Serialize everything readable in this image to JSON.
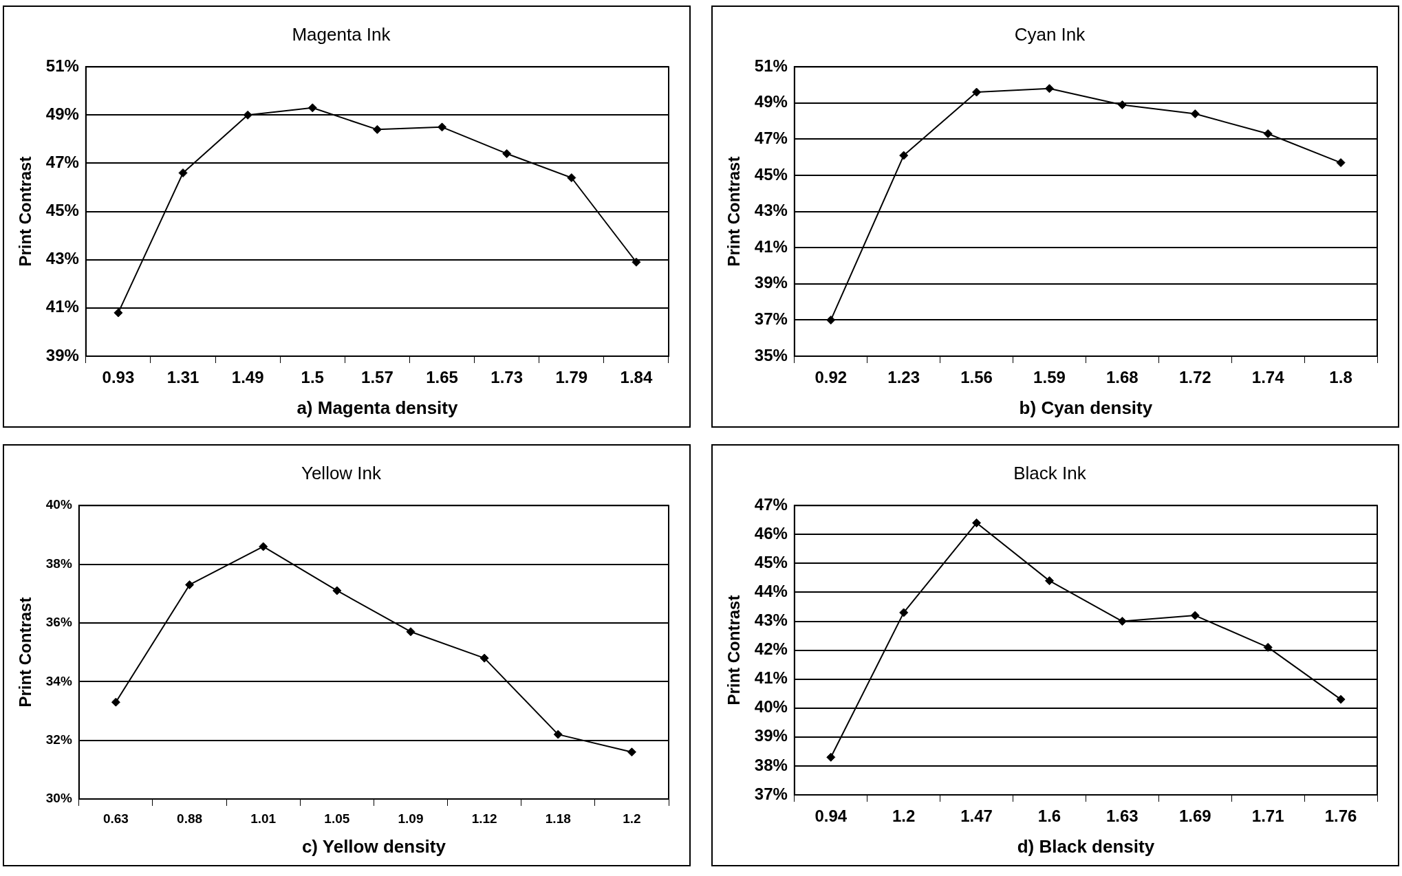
{
  "chart_data": [
    {
      "type": "line",
      "title": "Magenta Ink",
      "xlabel": "a) Magenta density",
      "ylabel": "Print Contrast",
      "categories": [
        "0.93",
        "1.31",
        "1.49",
        "1.5",
        "1.57",
        "1.65",
        "1.73",
        "1.79",
        "1.84"
      ],
      "values": [
        40.8,
        46.6,
        49.0,
        49.3,
        48.4,
        48.5,
        47.4,
        46.4,
        42.9
      ],
      "color": "#000000",
      "ylim": [
        39,
        51
      ],
      "yticks": [
        {
          "value": 39,
          "label": "39%"
        },
        {
          "value": 41,
          "label": "41%"
        },
        {
          "value": 43,
          "label": "43%"
        },
        {
          "value": 45,
          "label": "45%"
        },
        {
          "value": 47,
          "label": "47%"
        },
        {
          "value": 49,
          "label": "49%"
        },
        {
          "value": 51,
          "label": "51%"
        }
      ],
      "grid": "y",
      "legend": false,
      "marker": "diamond",
      "line_style": "solid"
    },
    {
      "type": "line",
      "title": "Cyan Ink",
      "xlabel": "b) Cyan density",
      "ylabel": "Print Contrast",
      "categories": [
        "0.92",
        "1.23",
        "1.56",
        "1.59",
        "1.68",
        "1.72",
        "1.74",
        "1.8"
      ],
      "values": [
        37.0,
        46.1,
        49.6,
        49.8,
        48.9,
        48.4,
        47.3,
        45.7
      ],
      "color": "#000000",
      "ylim": [
        35,
        51
      ],
      "yticks": [
        {
          "value": 35,
          "label": "35%"
        },
        {
          "value": 37,
          "label": "37%"
        },
        {
          "value": 39,
          "label": "39%"
        },
        {
          "value": 41,
          "label": "41%"
        },
        {
          "value": 43,
          "label": "43%"
        },
        {
          "value": 45,
          "label": "45%"
        },
        {
          "value": 47,
          "label": "47%"
        },
        {
          "value": 49,
          "label": "49%"
        },
        {
          "value": 51,
          "label": "51%"
        }
      ],
      "grid": "y",
      "legend": false,
      "marker": "diamond",
      "line_style": "solid"
    },
    {
      "type": "line",
      "title": "Yellow Ink",
      "xlabel": "c) Yellow density",
      "ylabel": "Print Contrast",
      "categories": [
        "0.63",
        "0.88",
        "1.01",
        "1.05",
        "1.09",
        "1.12",
        "1.18",
        "1.2"
      ],
      "values": [
        33.3,
        37.3,
        38.6,
        37.1,
        35.7,
        34.8,
        32.2,
        31.6
      ],
      "color": "#000000",
      "ylim": [
        30,
        40
      ],
      "yticks": [
        {
          "value": 30,
          "label": "30%"
        },
        {
          "value": 32,
          "label": "32%"
        },
        {
          "value": 34,
          "label": "34%"
        },
        {
          "value": 36,
          "label": "36%"
        },
        {
          "value": 38,
          "label": "38%"
        },
        {
          "value": 40,
          "label": "40%"
        }
      ],
      "grid": "y",
      "legend": false,
      "marker": "diamond",
      "line_style": "solid"
    },
    {
      "type": "line",
      "title": "Black Ink",
      "xlabel": "d) Black density",
      "ylabel": "Print Contrast",
      "categories": [
        "0.94",
        "1.2",
        "1.47",
        "1.6",
        "1.63",
        "1.69",
        "1.71",
        "1.76"
      ],
      "values": [
        38.3,
        43.3,
        46.4,
        44.4,
        43.0,
        43.2,
        42.1,
        40.3
      ],
      "color": "#000000",
      "ylim": [
        37,
        47
      ],
      "yticks": [
        {
          "value": 37,
          "label": "37%"
        },
        {
          "value": 38,
          "label": "38%"
        },
        {
          "value": 39,
          "label": "39%"
        },
        {
          "value": 40,
          "label": "40%"
        },
        {
          "value": 41,
          "label": "41%"
        },
        {
          "value": 42,
          "label": "42%"
        },
        {
          "value": 43,
          "label": "43%"
        },
        {
          "value": 44,
          "label": "44%"
        },
        {
          "value": 45,
          "label": "45%"
        },
        {
          "value": 46,
          "label": "46%"
        },
        {
          "value": 47,
          "label": "47%"
        }
      ],
      "grid": "y",
      "legend": false,
      "marker": "diamond",
      "line_style": "solid"
    }
  ]
}
